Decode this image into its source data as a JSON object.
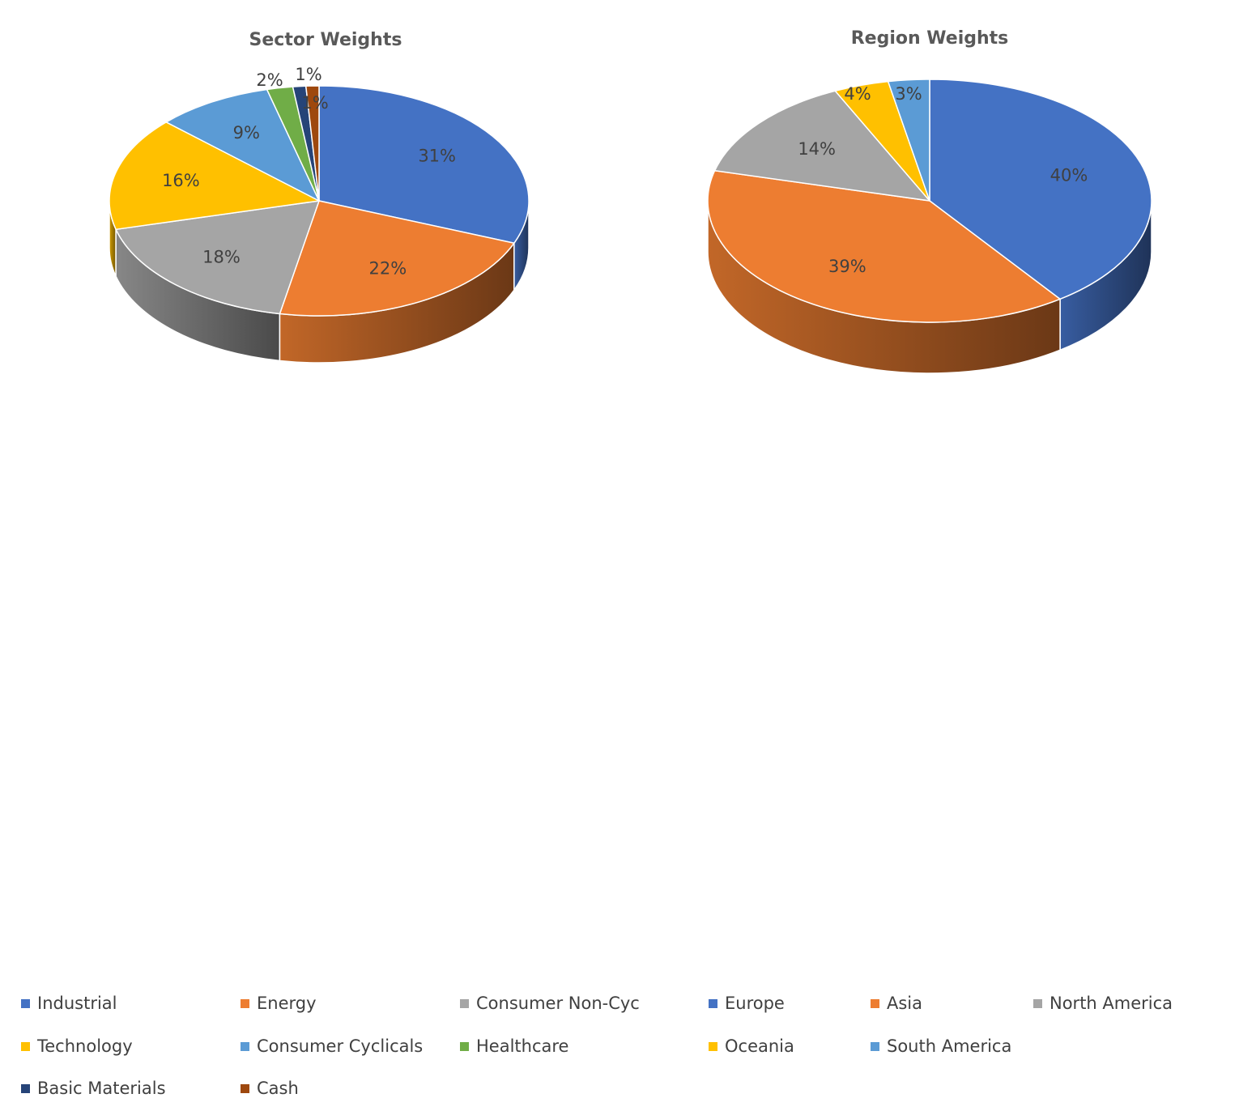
{
  "chart_data": [
    {
      "type": "pie",
      "title": "Sector Weights",
      "categories": [
        "Industrial",
        "Energy",
        "Consumer Non-Cyc",
        "Technology",
        "Consumer Cyclicals",
        "Healthcare",
        "Basic Materials",
        "Cash"
      ],
      "values": [
        31,
        22,
        18,
        16,
        9,
        2,
        1,
        1
      ],
      "labels": [
        "31%",
        "22%",
        "18%",
        "16%",
        "9%",
        "2%",
        "1%",
        "1%"
      ],
      "colors": [
        "#4472C4",
        "#ED7D31",
        "#A5A5A5",
        "#FFC000",
        "#5B9BD5",
        "#70AD47",
        "#264478",
        "#9E480E"
      ],
      "legend_position": "bottom",
      "style": "3d"
    },
    {
      "type": "pie",
      "title": "Region Weights",
      "categories": [
        "Europe",
        "Asia",
        "North America",
        "Oceania",
        "South America"
      ],
      "values": [
        40,
        39,
        14,
        4,
        3
      ],
      "labels": [
        "40%",
        "39%",
        "14%",
        "4%",
        "3%"
      ],
      "colors": [
        "#4472C4",
        "#ED7D31",
        "#A5A5A5",
        "#FFC000",
        "#5B9BD5"
      ],
      "legend_position": "bottom",
      "style": "3d"
    }
  ]
}
